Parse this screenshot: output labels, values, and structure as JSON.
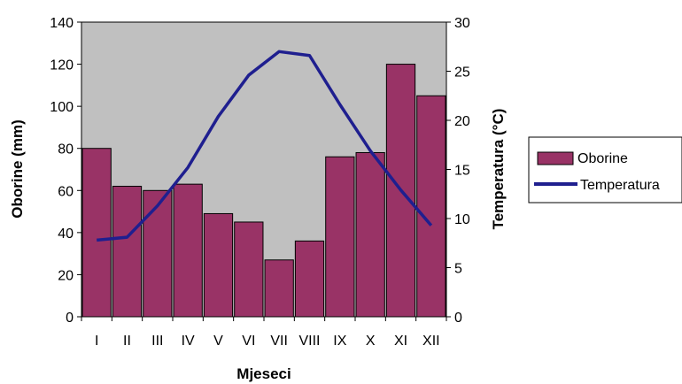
{
  "chart_data": {
    "type": "bar",
    "categories": [
      "I",
      "II",
      "III",
      "IV",
      "V",
      "VI",
      "VII",
      "VIII",
      "IX",
      "X",
      "XI",
      "XII"
    ],
    "xlabel": "Mjeseci",
    "series": [
      {
        "name": "Oborine",
        "type": "bar",
        "axis": "left",
        "values": [
          80,
          62,
          60,
          63,
          49,
          45,
          27,
          36,
          76,
          78,
          120,
          105
        ]
      },
      {
        "name": "Temperatura",
        "type": "line",
        "axis": "right",
        "values": [
          7.8,
          8.1,
          11.3,
          15.2,
          20.4,
          24.6,
          27.0,
          26.6,
          21.6,
          16.9,
          12.9,
          9.3
        ]
      }
    ],
    "y_left": {
      "label": "Oborine (mm)",
      "range": [
        0,
        140
      ],
      "ticks": [
        "0",
        "20",
        "40",
        "60",
        "80",
        "100",
        "120",
        "140"
      ]
    },
    "y_right": {
      "label": "Temperatura (°C)",
      "range": [
        0,
        30
      ],
      "ticks": [
        "0",
        "5",
        "10",
        "15",
        "20",
        "25",
        "30"
      ]
    },
    "legend_position": "right",
    "grid": false,
    "colors": {
      "plot_background": "#c0c0c0",
      "bar_fill": "#993366",
      "bar_stroke": "#000000",
      "line": "#1f1f8f"
    }
  }
}
